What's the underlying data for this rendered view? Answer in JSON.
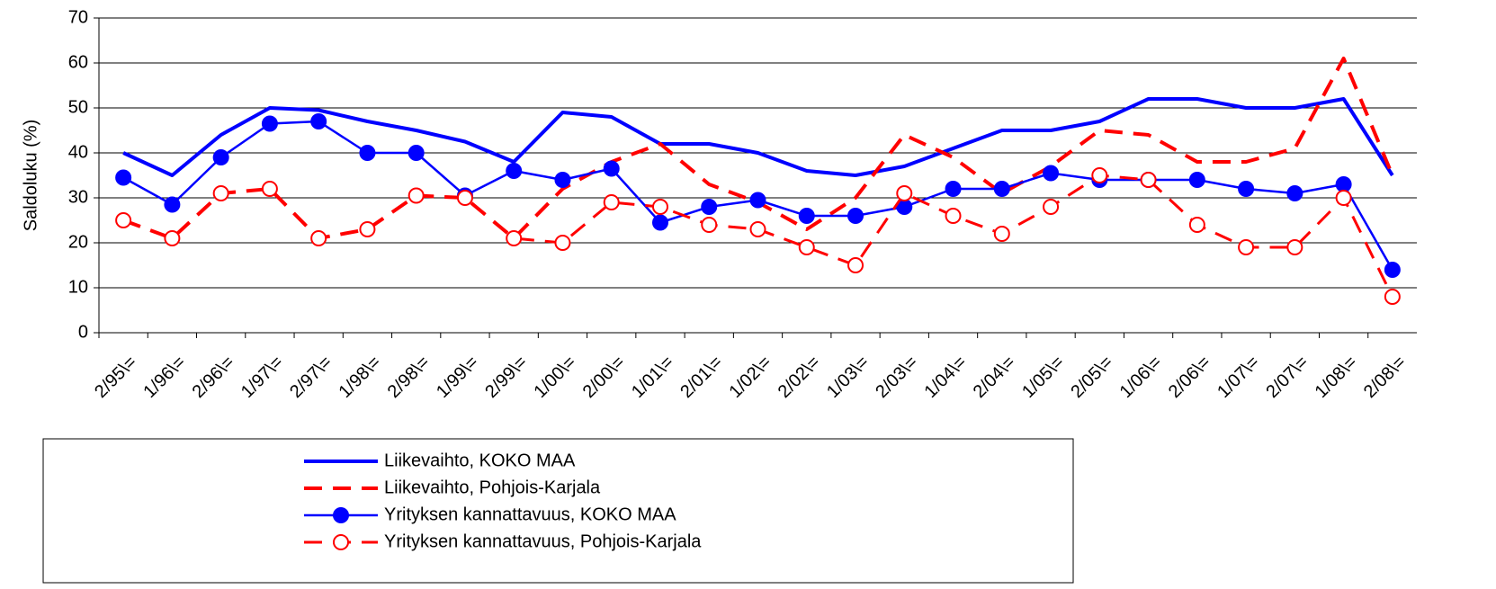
{
  "chart_data": {
    "type": "line",
    "y_label": "Saldoluku (%)",
    "categories": [
      "2/95\\=",
      "1/96\\=",
      "2/96\\=",
      "1/97\\=",
      "2/97\\=",
      "1/98\\=",
      "2/98\\=",
      "1/99\\=",
      "2/99\\=",
      "1/00\\=",
      "2/00\\=",
      "1/01\\=",
      "2/01\\=",
      "1/02\\=",
      "2/02\\=",
      "1/03\\=",
      "2/03\\=",
      "1/04\\=",
      "2/04\\=",
      "1/05\\=",
      "2/05\\=",
      "1/06\\=",
      "2/06\\=",
      "1/07\\=",
      "2/07\\=",
      "1/08\\=",
      "2/08\\="
    ],
    "series": [
      {
        "name": "Liikevaihto, KOKO MAA",
        "color": "#0000ff",
        "dashed": false,
        "marker": "none",
        "width": 4,
        "values": [
          40,
          35,
          44,
          50,
          49.5,
          47,
          45,
          42.5,
          38,
          49,
          48,
          42,
          42,
          40,
          36,
          35,
          37,
          41,
          45,
          45,
          47,
          52,
          52,
          50,
          50,
          52,
          35
        ]
      },
      {
        "name": "Liikevaihto, Pohjois-Karjala",
        "color": "#ff0000",
        "dashed": true,
        "marker": "none",
        "width": 4,
        "values": [
          25,
          21,
          31,
          32,
          21,
          23,
          30.5,
          30,
          21,
          32,
          38,
          42,
          33,
          29,
          23,
          30,
          44,
          39,
          31,
          37,
          45,
          44,
          38,
          38,
          41,
          61,
          35
        ]
      },
      {
        "name": "Yrityksen kannattavuus, KOKO MAA",
        "color": "#0000ff",
        "dashed": false,
        "marker": "filled-circle",
        "width": 2.5,
        "values": [
          34.5,
          28.5,
          39,
          46.5,
          47,
          40,
          40,
          30.5,
          36,
          34,
          36.5,
          24.5,
          28,
          29.5,
          26,
          26,
          28,
          32,
          32,
          35.5,
          34,
          34,
          34,
          32,
          31,
          33,
          14
        ]
      },
      {
        "name": "Yrityksen kannattavuus, Pohjois-Karjala",
        "color": "#ff0000",
        "dashed": true,
        "marker": "open-circle",
        "width": 3,
        "values": [
          25,
          21,
          31,
          32,
          21,
          23,
          30.5,
          30,
          21,
          20,
          29,
          28,
          24,
          23,
          19,
          15,
          31,
          26,
          22,
          28,
          35,
          34,
          24,
          19,
          19,
          30,
          8
        ]
      }
    ],
    "ylim": [
      0,
      70
    ],
    "yticks": [
      0,
      10,
      20,
      30,
      40,
      50,
      60,
      70
    ],
    "grid": true
  }
}
